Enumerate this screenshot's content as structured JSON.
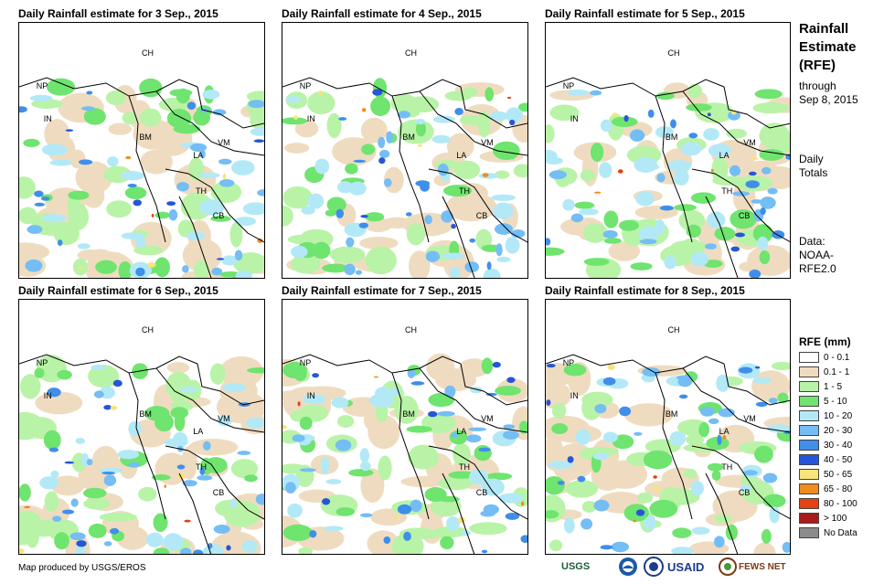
{
  "panels": [
    {
      "title": "Daily Rainfall estimate for 3 Sep., 2015",
      "labels": [
        "CH",
        "NP",
        "IN",
        "BM",
        "LA",
        "VM",
        "TH",
        "CB"
      ]
    },
    {
      "title": "Daily Rainfall estimate for 4 Sep., 2015",
      "labels": [
        "CH",
        "NP",
        "IN",
        "BM",
        "LA",
        "VM",
        "TH",
        "CB"
      ]
    },
    {
      "title": "Daily Rainfall estimate for 5 Sep., 2015",
      "labels": [
        "CH",
        "NP",
        "IN",
        "BM",
        "LA",
        "VM",
        "TH",
        "CB"
      ]
    },
    {
      "title": "Daily Rainfall estimate for 6 Sep., 2015",
      "labels": [
        "CH",
        "NP",
        "IN",
        "BM",
        "LA",
        "VM",
        "TH",
        "CB"
      ]
    },
    {
      "title": "Daily Rainfall estimate for 7 Sep., 2015",
      "labels": [
        "CH",
        "NP",
        "IN",
        "BM",
        "LA",
        "VM",
        "TH",
        "CB"
      ]
    },
    {
      "title": "Daily Rainfall estimate for 8 Sep., 2015",
      "labels": [
        "CH",
        "NP",
        "IN",
        "BM",
        "LA",
        "VM",
        "TH",
        "CB"
      ]
    }
  ],
  "sidebar": {
    "title_lines": [
      "Rainfall",
      "Estimate",
      "(RFE)"
    ],
    "through_lines": [
      "through",
      "Sep 8, 2015"
    ],
    "daily_lines": [
      "Daily",
      "Totals"
    ],
    "data_lines": [
      "Data:",
      "NOAA-",
      "RFE2.0"
    ]
  },
  "legend": {
    "title": "RFE (mm)",
    "items": [
      {
        "label": "0 - 0.1",
        "color": "#ffffff"
      },
      {
        "label": "0.1 - 1",
        "color": "#efdcc0"
      },
      {
        "label": "1 - 5",
        "color": "#b9f3a7"
      },
      {
        "label": "5 - 10",
        "color": "#6fe46f"
      },
      {
        "label": "10 - 20",
        "color": "#b3e9f7"
      },
      {
        "label": "20 - 30",
        "color": "#74bdf5"
      },
      {
        "label": "30 - 40",
        "color": "#3f8fea"
      },
      {
        "label": "40 - 50",
        "color": "#2656d7"
      },
      {
        "label": "50 - 65",
        "color": "#f8e47a"
      },
      {
        "label": "65 - 80",
        "color": "#f08c1e"
      },
      {
        "label": "80 - 100",
        "color": "#e54214"
      },
      {
        "label": "> 100",
        "color": "#a71c1c"
      },
      {
        "label": "No Data",
        "color": "#8c8c8c"
      }
    ]
  },
  "credit": "Map produced by USGS/EROS",
  "logos": [
    "USGS",
    "USAID",
    "FEWS NET"
  ]
}
